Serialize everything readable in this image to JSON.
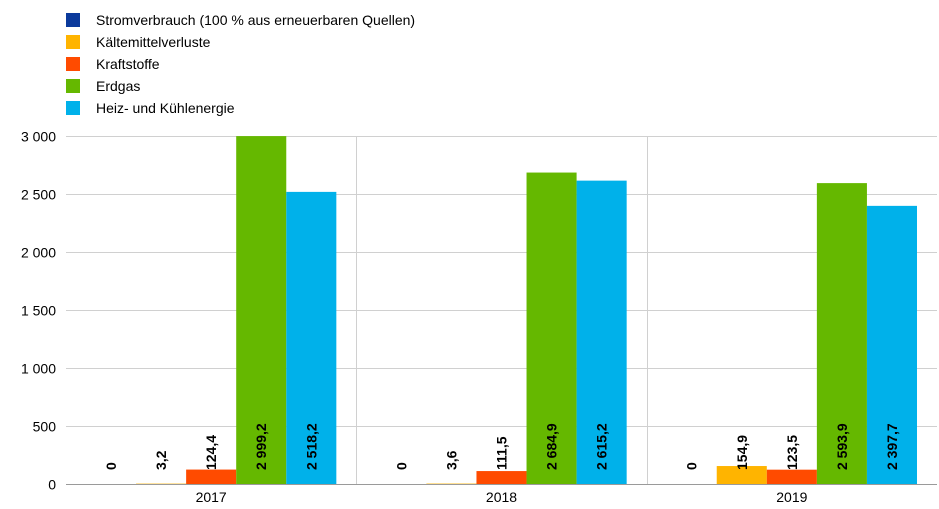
{
  "chart_data": {
    "type": "bar",
    "categories": [
      "2017",
      "2018",
      "2019"
    ],
    "series": [
      {
        "name": "Stromverbrauch (100 % aus erneuerbaren Quellen)",
        "color": "#0b3a9c",
        "values": [
          0,
          0,
          0
        ],
        "labels": [
          "0",
          "0",
          "0"
        ]
      },
      {
        "name": "Kältemittelverluste",
        "color": "#ffb400",
        "values": [
          3.2,
          3.6,
          154.9
        ],
        "labels": [
          "3,2",
          "3,6",
          "154,9"
        ]
      },
      {
        "name": "Kraftstoffe",
        "color": "#ff4b00",
        "values": [
          124.4,
          111.5,
          123.5
        ],
        "labels": [
          "124,4",
          "111,5",
          "123,5"
        ]
      },
      {
        "name": "Erdgas",
        "color": "#65b800",
        "values": [
          2999.2,
          2684.9,
          2593.9
        ],
        "labels": [
          "2 999,2",
          "2 684,9",
          "2 593,9"
        ]
      },
      {
        "name": "Heiz- und Kühlenergie",
        "color": "#00b1ea",
        "values": [
          2518.2,
          2615.2,
          2397.7
        ],
        "labels": [
          "2 518,2",
          "2 615,2",
          "2 397,7"
        ]
      }
    ],
    "ylim": [
      0,
      3000
    ],
    "yticks": [
      0,
      500,
      1000,
      1500,
      2000,
      2500,
      3000
    ],
    "ytick_labels": [
      "0",
      "500",
      "1 000",
      "1 500",
      "2 000",
      "2 500",
      "3 000"
    ],
    "grid": true,
    "legend_position": "top-left",
    "title": "",
    "xlabel": "",
    "ylabel": ""
  }
}
